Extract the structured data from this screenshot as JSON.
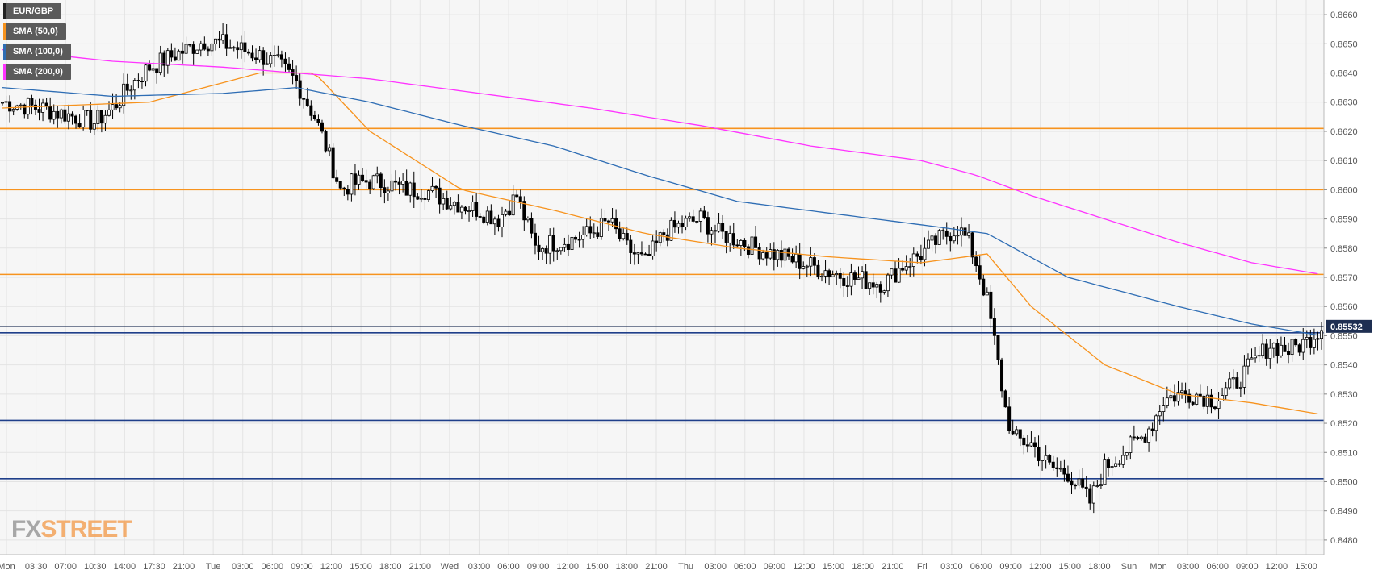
{
  "legend": [
    {
      "label": "EUR/GBP",
      "color": "#222222"
    },
    {
      "label": "SMA (50,0)",
      "color": "#f7931e"
    },
    {
      "label": "SMA (100,0)",
      "color": "#2e6db4"
    },
    {
      "label": "SMA (200,0)",
      "color": "#ff33ff"
    }
  ],
  "logo": {
    "fx": "FX",
    "street": "STREET"
  },
  "current_price_label": "0.85532",
  "chart_data": {
    "type": "candlestick",
    "instrument": "EUR/GBP",
    "ylim": [
      0.8475,
      0.8665
    ],
    "y_ticks": [
      "0.8480",
      "0.8490",
      "0.8500",
      "0.8510",
      "0.8520",
      "0.8530",
      "0.8540",
      "0.8550",
      "0.8560",
      "0.8570",
      "0.8580",
      "0.8590",
      "0.8600",
      "0.8610",
      "0.8620",
      "0.8630",
      "0.8640",
      "0.8650",
      "0.8660"
    ],
    "x_ticks": [
      "Mon",
      "03:30",
      "07:00",
      "10:30",
      "14:00",
      "17:30",
      "21:00",
      "Tue",
      "03:00",
      "06:00",
      "09:00",
      "12:00",
      "15:00",
      "18:00",
      "21:00",
      "Wed",
      "03:00",
      "06:00",
      "09:00",
      "12:00",
      "15:00",
      "18:00",
      "21:00",
      "Thu",
      "03:00",
      "06:00",
      "09:00",
      "12:00",
      "15:00",
      "18:00",
      "21:00",
      "Fri",
      "03:00",
      "06:00",
      "09:00",
      "12:00",
      "15:00",
      "18:00",
      "Sun",
      "Mon",
      "03:00",
      "06:00",
      "09:00",
      "12:00",
      "15:00"
    ],
    "grid": true,
    "resistance_levels": [
      0.8621,
      0.86,
      0.8571
    ],
    "support_levels": [
      0.8551,
      0.8521,
      0.8501
    ],
    "current_price": 0.85532,
    "close_path": [
      [
        0,
        0.863
      ],
      [
        10,
        0.8628
      ],
      [
        20,
        0.8625
      ],
      [
        25,
        0.8623
      ],
      [
        30,
        0.8628
      ],
      [
        35,
        0.8636
      ],
      [
        40,
        0.8642
      ],
      [
        45,
        0.8645
      ],
      [
        50,
        0.8648
      ],
      [
        55,
        0.8651
      ],
      [
        60,
        0.865
      ],
      [
        65,
        0.8648
      ],
      [
        70,
        0.8646
      ],
      [
        75,
        0.8643
      ],
      [
        80,
        0.8637
      ],
      [
        85,
        0.8625
      ],
      [
        88,
        0.8615
      ],
      [
        92,
        0.86
      ],
      [
        95,
        0.8602
      ],
      [
        100,
        0.8603
      ],
      [
        105,
        0.8602
      ],
      [
        110,
        0.86
      ],
      [
        115,
        0.86
      ],
      [
        120,
        0.8597
      ],
      [
        125,
        0.8595
      ],
      [
        130,
        0.8593
      ],
      [
        135,
        0.859
      ],
      [
        140,
        0.8598
      ],
      [
        145,
        0.858
      ],
      [
        150,
        0.8582
      ],
      [
        155,
        0.8583
      ],
      [
        160,
        0.8585
      ],
      [
        165,
        0.8589
      ],
      [
        170,
        0.858
      ],
      [
        175,
        0.8575
      ],
      [
        180,
        0.8585
      ],
      [
        185,
        0.8588
      ],
      [
        190,
        0.859
      ],
      [
        195,
        0.8585
      ],
      [
        200,
        0.8583
      ],
      [
        205,
        0.858
      ],
      [
        210,
        0.8578
      ],
      [
        215,
        0.8576
      ],
      [
        220,
        0.8574
      ],
      [
        225,
        0.8572
      ],
      [
        230,
        0.857
      ],
      [
        235,
        0.8569
      ],
      [
        240,
        0.8568
      ],
      [
        245,
        0.8574
      ],
      [
        250,
        0.8578
      ],
      [
        255,
        0.8583
      ],
      [
        260,
        0.8587
      ],
      [
        263,
        0.8582
      ],
      [
        265,
        0.8575
      ],
      [
        268,
        0.8562
      ],
      [
        270,
        0.8548
      ],
      [
        273,
        0.8525
      ],
      [
        275,
        0.8515
      ],
      [
        280,
        0.8513
      ],
      [
        285,
        0.8505
      ],
      [
        290,
        0.8503
      ],
      [
        293,
        0.8498
      ],
      [
        296,
        0.8493
      ],
      [
        300,
        0.8505
      ],
      [
        305,
        0.851
      ],
      [
        310,
        0.8515
      ],
      [
        313,
        0.852
      ],
      [
        316,
        0.8528
      ],
      [
        320,
        0.853
      ],
      [
        325,
        0.853
      ],
      [
        330,
        0.8528
      ],
      [
        335,
        0.8533
      ],
      [
        340,
        0.854
      ],
      [
        345,
        0.8547
      ],
      [
        350,
        0.8545
      ],
      [
        355,
        0.8548
      ],
      [
        359,
        0.8553
      ]
    ],
    "sma_50_path": [
      [
        0,
        0.8628
      ],
      [
        40,
        0.863
      ],
      [
        70,
        0.864
      ],
      [
        85,
        0.864
      ],
      [
        100,
        0.862
      ],
      [
        125,
        0.86
      ],
      [
        150,
        0.8593
      ],
      [
        175,
        0.8585
      ],
      [
        200,
        0.858
      ],
      [
        225,
        0.8577
      ],
      [
        250,
        0.8575
      ],
      [
        268,
        0.8578
      ],
      [
        280,
        0.856
      ],
      [
        300,
        0.854
      ],
      [
        320,
        0.853
      ],
      [
        340,
        0.8527
      ],
      [
        359,
        0.8523
      ]
    ],
    "sma_100_path": [
      [
        0,
        0.8635
      ],
      [
        30,
        0.8632
      ],
      [
        60,
        0.8633
      ],
      [
        80,
        0.8635
      ],
      [
        100,
        0.863
      ],
      [
        125,
        0.8622
      ],
      [
        150,
        0.8615
      ],
      [
        175,
        0.8605
      ],
      [
        200,
        0.8596
      ],
      [
        225,
        0.8592
      ],
      [
        250,
        0.8588
      ],
      [
        268,
        0.8585
      ],
      [
        290,
        0.857
      ],
      [
        320,
        0.856
      ],
      [
        340,
        0.8554
      ],
      [
        359,
        0.855
      ]
    ],
    "sma_200_path": [
      [
        0,
        0.8648
      ],
      [
        30,
        0.8644
      ],
      [
        60,
        0.8642
      ],
      [
        80,
        0.864
      ],
      [
        100,
        0.8638
      ],
      [
        130,
        0.8633
      ],
      [
        160,
        0.8628
      ],
      [
        190,
        0.8622
      ],
      [
        220,
        0.8615
      ],
      [
        250,
        0.861
      ],
      [
        265,
        0.8605
      ],
      [
        280,
        0.8598
      ],
      [
        300,
        0.859
      ],
      [
        320,
        0.8582
      ],
      [
        340,
        0.8575
      ],
      [
        359,
        0.8571
      ]
    ]
  }
}
